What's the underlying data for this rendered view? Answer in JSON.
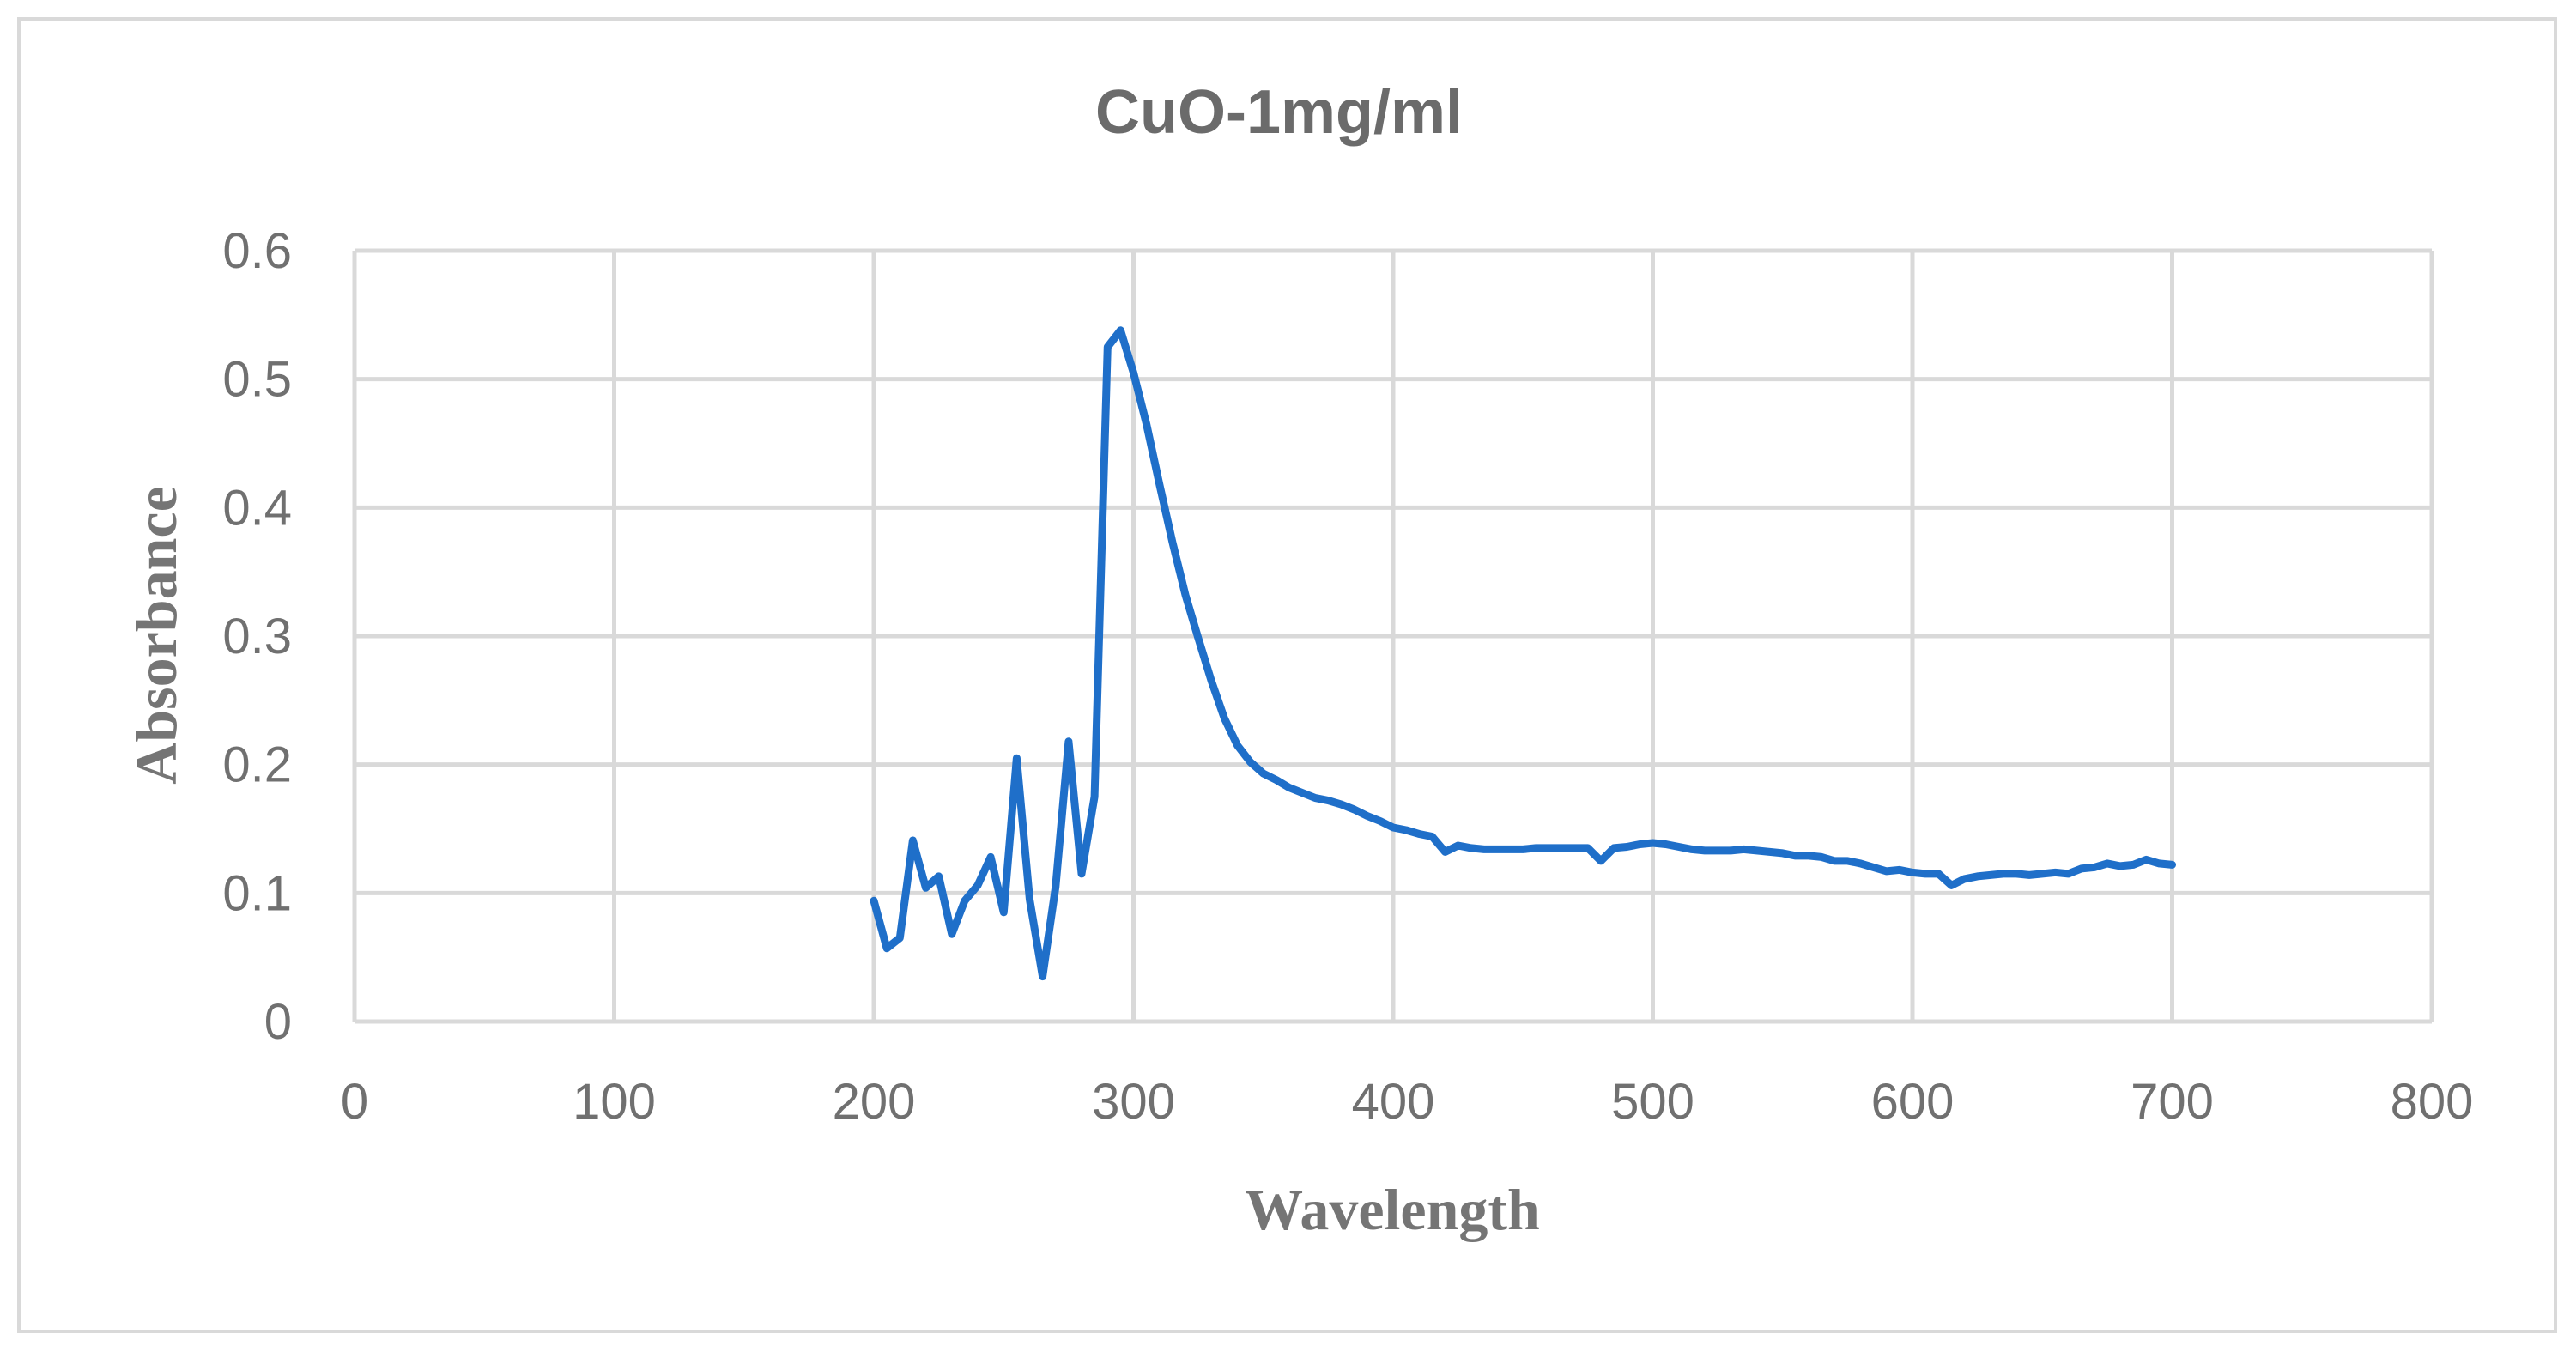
{
  "chart_data": {
    "type": "line",
    "title": "CuO-1mg/ml",
    "xlabel": "Wavelength",
    "ylabel": "Absorbance",
    "xlim": [
      0,
      800
    ],
    "ylim": [
      0,
      0.6
    ],
    "x_ticks": [
      0,
      100,
      200,
      300,
      400,
      500,
      600,
      700,
      800
    ],
    "y_ticks": [
      0,
      0.1,
      0.2,
      0.3,
      0.4,
      0.5,
      0.6
    ],
    "x_tick_labels": [
      "0",
      "100",
      "200",
      "300",
      "400",
      "500",
      "600",
      "700",
      "800"
    ],
    "y_tick_labels": [
      "0",
      "0.1",
      "0.2",
      "0.3",
      "0.4",
      "0.5",
      "0.6"
    ],
    "grid": true,
    "legend": "none",
    "series": [
      {
        "name": "CuO-1mg/ml",
        "color": "#1f6fc9",
        "x": [
          200,
          205,
          210,
          215,
          220,
          225,
          230,
          235,
          240,
          245,
          250,
          255,
          260,
          265,
          270,
          275,
          280,
          285,
          290,
          295,
          300,
          305,
          310,
          315,
          320,
          325,
          330,
          335,
          340,
          345,
          350,
          355,
          360,
          365,
          370,
          375,
          380,
          385,
          390,
          395,
          400,
          405,
          410,
          415,
          420,
          425,
          430,
          435,
          440,
          445,
          450,
          455,
          460,
          465,
          470,
          475,
          480,
          485,
          490,
          495,
          500,
          505,
          510,
          515,
          520,
          525,
          530,
          535,
          540,
          545,
          550,
          555,
          560,
          565,
          570,
          575,
          580,
          585,
          590,
          595,
          600,
          605,
          610,
          615,
          620,
          625,
          630,
          635,
          640,
          645,
          650,
          655,
          660,
          665,
          670,
          675,
          680,
          685,
          690,
          695,
          700
        ],
        "values": [
          0.094,
          0.057,
          0.065,
          0.141,
          0.104,
          0.113,
          0.068,
          0.094,
          0.106,
          0.128,
          0.085,
          0.205,
          0.095,
          0.035,
          0.105,
          0.218,
          0.115,
          0.175,
          0.525,
          0.538,
          0.505,
          0.465,
          0.418,
          0.373,
          0.332,
          0.298,
          0.265,
          0.236,
          0.215,
          0.202,
          0.193,
          0.188,
          0.182,
          0.178,
          0.174,
          0.172,
          0.169,
          0.165,
          0.16,
          0.156,
          0.151,
          0.149,
          0.146,
          0.144,
          0.132,
          0.137,
          0.135,
          0.134,
          0.134,
          0.134,
          0.134,
          0.135,
          0.135,
          0.135,
          0.135,
          0.135,
          0.125,
          0.135,
          0.136,
          0.138,
          0.139,
          0.138,
          0.136,
          0.134,
          0.133,
          0.133,
          0.133,
          0.134,
          0.133,
          0.132,
          0.131,
          0.129,
          0.129,
          0.128,
          0.125,
          0.125,
          0.123,
          0.12,
          0.117,
          0.118,
          0.116,
          0.115,
          0.115,
          0.106,
          0.111,
          0.113,
          0.114,
          0.115,
          0.115,
          0.114,
          0.115,
          0.116,
          0.115,
          0.119,
          0.12,
          0.123,
          0.121,
          0.122,
          0.126,
          0.123,
          0.122
        ]
      }
    ]
  }
}
